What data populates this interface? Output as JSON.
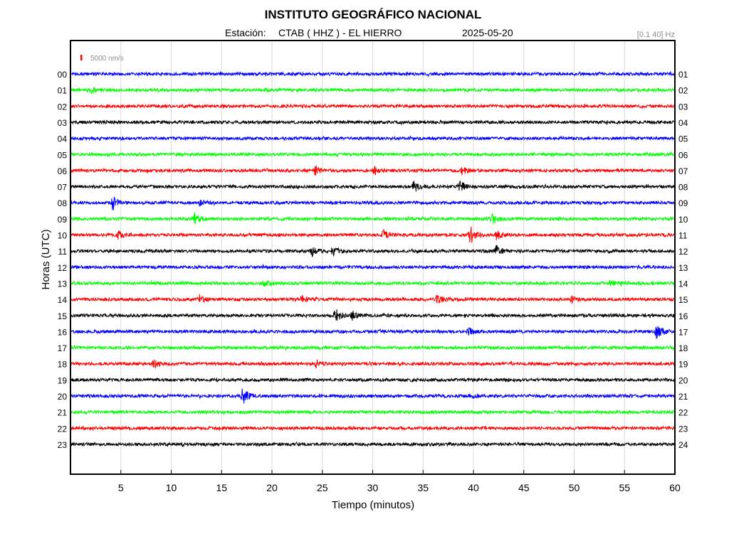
{
  "header": {
    "title": "INSTITUTO GEOGRÁFICO NACIONAL",
    "station_label": "Estación:",
    "station": "CTAB ( HHZ ) - EL HIERRO",
    "date": "2025-05-20",
    "filter": "[0.1 40] Hz"
  },
  "scale_bar": {
    "label": "5000 nm/s",
    "color": "#ff0000"
  },
  "chart_data": {
    "type": "line",
    "title": "INSTITUTO GEOGRÁFICO NACIONAL",
    "xlabel": "Tiempo (minutos)",
    "ylabel": "Horas (UTC)",
    "xlim": [
      0,
      60
    ],
    "x_ticks": [
      "5",
      "10",
      "15",
      "20",
      "25",
      "30",
      "35",
      "40",
      "45",
      "50",
      "55",
      "60"
    ],
    "left_labels": [
      "00",
      "01",
      "02",
      "03",
      "04",
      "05",
      "06",
      "07",
      "08",
      "09",
      "10",
      "11",
      "12",
      "13",
      "14",
      "15",
      "16",
      "17",
      "18",
      "19",
      "20",
      "21",
      "22",
      "23"
    ],
    "right_labels": [
      "01",
      "02",
      "03",
      "04",
      "05",
      "06",
      "07",
      "08",
      "09",
      "10",
      "11",
      "12",
      "13",
      "14",
      "15",
      "16",
      "17",
      "18",
      "19",
      "20",
      "21",
      "22",
      "23",
      "24"
    ],
    "trace_colors": [
      "#0000ff",
      "#00ff00",
      "#ff0000",
      "#000000"
    ],
    "grid": true,
    "events": [
      {
        "hour": 1,
        "minute": 2.1,
        "amp": 0.8
      },
      {
        "hour": 6,
        "minute": 24.3,
        "amp": 0.9
      },
      {
        "hour": 6,
        "minute": 30.2,
        "amp": 0.8
      },
      {
        "hour": 6,
        "minute": 38.9,
        "amp": 0.8
      },
      {
        "hour": 7,
        "minute": 34.1,
        "amp": 1.0
      },
      {
        "hour": 7,
        "minute": 38.6,
        "amp": 1.3
      },
      {
        "hour": 8,
        "minute": 4.2,
        "amp": 1.4
      },
      {
        "hour": 8,
        "minute": 12.9,
        "amp": 0.6
      },
      {
        "hour": 9,
        "minute": 12.3,
        "amp": 1.0
      },
      {
        "hour": 9,
        "minute": 41.8,
        "amp": 1.1
      },
      {
        "hour": 10,
        "minute": 4.8,
        "amp": 0.7
      },
      {
        "hour": 10,
        "minute": 31.0,
        "amp": 0.8
      },
      {
        "hour": 10,
        "minute": 39.7,
        "amp": 1.8
      },
      {
        "hour": 10,
        "minute": 42.3,
        "amp": 0.9
      },
      {
        "hour": 11,
        "minute": 24.0,
        "amp": 0.9
      },
      {
        "hour": 11,
        "minute": 26.0,
        "amp": 1.0
      },
      {
        "hour": 11,
        "minute": 42.3,
        "amp": 1.2
      },
      {
        "hour": 13,
        "minute": 19.2,
        "amp": 0.6
      },
      {
        "hour": 13,
        "minute": 53.6,
        "amp": 0.8
      },
      {
        "hour": 14,
        "minute": 12.8,
        "amp": 0.6
      },
      {
        "hour": 14,
        "minute": 23.0,
        "amp": 0.7
      },
      {
        "hour": 14,
        "minute": 36.4,
        "amp": 0.9
      },
      {
        "hour": 14,
        "minute": 49.8,
        "amp": 0.6
      },
      {
        "hour": 15,
        "minute": 26.3,
        "amp": 1.4
      },
      {
        "hour": 15,
        "minute": 28.0,
        "amp": 0.9
      },
      {
        "hour": 16,
        "minute": 58.2,
        "amp": 1.6
      },
      {
        "hour": 16,
        "minute": 39.5,
        "amp": 0.6
      },
      {
        "hour": 18,
        "minute": 8.3,
        "amp": 0.8
      },
      {
        "hour": 18,
        "minute": 24.4,
        "amp": 0.7
      },
      {
        "hour": 20,
        "minute": 17.1,
        "amp": 1.6
      },
      {
        "hour": 20,
        "minute": 39.7,
        "amp": 0.6
      }
    ]
  }
}
